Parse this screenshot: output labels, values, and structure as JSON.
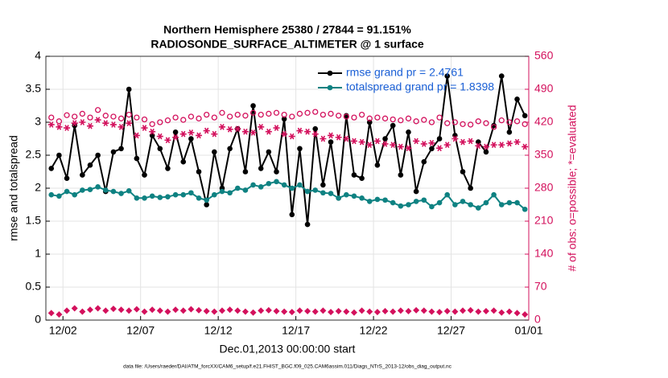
{
  "chart_data": {
    "type": "line",
    "title": [
      "Northern Hemisphere 25380 / 27844 = 91.151%",
      "RADIOSONDE_SURFACE_ALTIMETER @ 1 surface"
    ],
    "x_label": "Dec.01,2013 00:00:00 start",
    "y_label": "rmse and totalspread",
    "y2_label": "# of obs: o=possible; *=evaluated",
    "footnote": "data file: /Users/raeder/DAI/ATM_forcXX/CAM6_setup/f.e21.FHIST_BGC.f09_025.CAM6assim.011/Diags_NTrS_2013-12/obs_diag_output.nc",
    "xlim": [
      -0.1,
      31
    ],
    "xticks": [
      {
        "value": 1,
        "label": "12/02"
      },
      {
        "value": 6,
        "label": "12/07"
      },
      {
        "value": 11,
        "label": "12/12"
      },
      {
        "value": 16,
        "label": "12/17"
      },
      {
        "value": 21,
        "label": "12/22"
      },
      {
        "value": 26,
        "label": "12/27"
      },
      {
        "value": 31,
        "label": "01/01"
      }
    ],
    "ylim": [
      0,
      4
    ],
    "yticks": [
      0,
      0.5,
      1,
      1.5,
      2,
      2.5,
      3,
      3.5,
      4
    ],
    "y2lim": [
      0,
      560
    ],
    "y2ticks": [
      0,
      70,
      140,
      210,
      280,
      350,
      420,
      490,
      560
    ],
    "grid": true,
    "legend": "upper right",
    "x": [
      0.25,
      0.75,
      1.25,
      1.75,
      2.25,
      2.75,
      3.25,
      3.75,
      4.25,
      4.75,
      5.25,
      5.75,
      6.25,
      6.75,
      7.25,
      7.75,
      8.25,
      8.75,
      9.25,
      9.75,
      10.25,
      10.75,
      11.25,
      11.75,
      12.25,
      12.75,
      13.25,
      13.75,
      14.25,
      14.75,
      15.25,
      15.75,
      16.25,
      16.75,
      17.25,
      17.75,
      18.25,
      18.75,
      19.25,
      19.75,
      20.25,
      20.75,
      21.25,
      21.75,
      22.25,
      22.75,
      23.25,
      23.75,
      24.25,
      24.75,
      25.25,
      25.75,
      26.25,
      26.75,
      27.25,
      27.75,
      28.25,
      28.75,
      29.25,
      29.75,
      30.25,
      30.75
    ],
    "series": [
      {
        "name": "rmse grand pr = 2.4761",
        "color": "#000000",
        "marker": "filled",
        "line": true,
        "values": [
          2.3,
          2.5,
          2.15,
          2.95,
          2.2,
          2.35,
          2.5,
          1.95,
          2.55,
          2.6,
          3.5,
          2.45,
          2.2,
          2.8,
          2.6,
          2.3,
          2.85,
          2.4,
          2.75,
          2.25,
          1.75,
          2.55,
          2.0,
          2.6,
          2.9,
          2.25,
          3.25,
          2.3,
          2.55,
          2.25,
          3.05,
          1.6,
          2.6,
          1.45,
          2.9,
          2.05,
          2.7,
          1.85,
          3.1,
          2.2,
          2.15,
          3.0,
          2.35,
          2.75,
          2.95,
          2.2,
          2.85,
          1.95,
          2.4,
          2.6,
          2.75,
          3.7,
          2.8,
          2.25,
          2.0,
          2.7,
          2.55,
          2.95,
          3.7,
          2.85,
          3.35,
          3.1
        ]
      },
      {
        "name": "totalspread grand pr = 1.8398",
        "color": "#0f8282",
        "marker": "filled",
        "line": true,
        "values": [
          1.9,
          1.88,
          1.95,
          1.9,
          1.97,
          1.98,
          2.02,
          1.97,
          1.95,
          1.92,
          1.96,
          1.85,
          1.85,
          1.88,
          1.86,
          1.87,
          1.9,
          1.9,
          1.93,
          1.85,
          1.82,
          1.9,
          1.95,
          1.93,
          2.0,
          1.97,
          2.05,
          2.02,
          2.07,
          2.1,
          2.05,
          2.0,
          2.05,
          1.95,
          1.97,
          1.93,
          1.92,
          1.85,
          1.9,
          1.88,
          1.85,
          1.8,
          1.83,
          1.82,
          1.78,
          1.73,
          1.75,
          1.8,
          1.82,
          1.72,
          1.78,
          1.9,
          1.75,
          1.8,
          1.75,
          1.7,
          1.78,
          1.9,
          1.75,
          1.78,
          1.78,
          1.68
        ]
      },
      {
        "color": "#d3105c",
        "marker": "open",
        "axis": "y2",
        "values": [
          430,
          422,
          435,
          432,
          438,
          430,
          446,
          434,
          432,
          428,
          436,
          430,
          426,
          416,
          420,
          424,
          430,
          425,
          432,
          428,
          436,
          430,
          440,
          432,
          436,
          434,
          440,
          436,
          438,
          440,
          436,
          432,
          438,
          440,
          442,
          436,
          438,
          434,
          432,
          430,
          436,
          428,
          430,
          428,
          426,
          424,
          428,
          422,
          425,
          420,
          430,
          418,
          420,
          416,
          415,
          422,
          418,
          410,
          424,
          420,
          422,
          416
        ]
      },
      {
        "color": "#d3105c",
        "marker": "star",
        "axis": "y2",
        "values": [
          415,
          410,
          408,
          418,
          420,
          412,
          425,
          418,
          415,
          410,
          418,
          392,
          408,
          400,
          390,
          382,
          388,
          395,
          398,
          392,
          402,
          395,
          410,
          405,
          406,
          400,
          398,
          410,
          400,
          408,
          395,
          390,
          402,
          400,
          395,
          385,
          392,
          388,
          385,
          380,
          378,
          372,
          380,
          374,
          372,
          368,
          365,
          380,
          374,
          376,
          365,
          372,
          385,
          378,
          380,
          370,
          368,
          372,
          372,
          375,
          378,
          368
        ]
      },
      {
        "color": "#d3105c",
        "marker": "diamond",
        "axis": "y2",
        "values": [
          15,
          12,
          20,
          25,
          18,
          22,
          25,
          20,
          24,
          22,
          20,
          23,
          18,
          22,
          20,
          18,
          22,
          20,
          23,
          21,
          19,
          18,
          20,
          22,
          20,
          18,
          16,
          20,
          21,
          19,
          18,
          17,
          20,
          19,
          18,
          20,
          17,
          19,
          18,
          16,
          20,
          18,
          17,
          19,
          18,
          20,
          19,
          21,
          20,
          18,
          17,
          19,
          18,
          20,
          21,
          18,
          19,
          20,
          16,
          18,
          15,
          12
        ]
      }
    ]
  }
}
